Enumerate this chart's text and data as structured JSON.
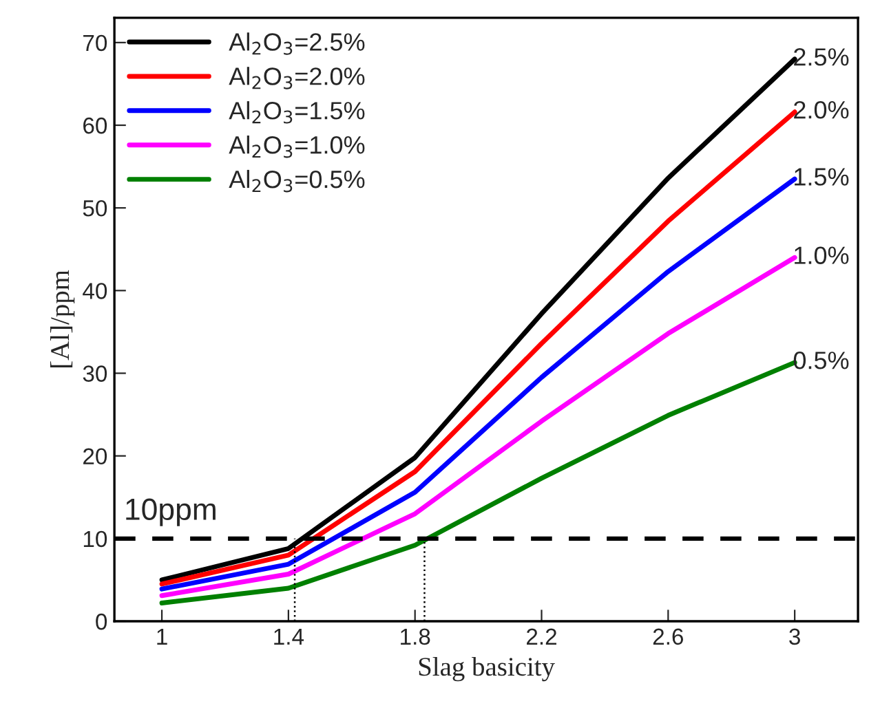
{
  "chart_data": {
    "type": "line",
    "xlabel": "Slag basicity",
    "ylabel": "[Al]/ppm",
    "x": [
      1,
      1.4,
      1.8,
      2.2,
      2.6,
      3
    ],
    "xlim": [
      0.85,
      3.2
    ],
    "xticks": [
      1,
      1.4,
      1.8,
      2.2,
      2.6,
      3
    ],
    "ylim": [
      0,
      73
    ],
    "yticks": [
      0,
      10,
      20,
      30,
      40,
      50,
      60,
      70
    ],
    "series": [
      {
        "name": "Al$_{2}$O$_{3}$=2.5%",
        "color": "#000000",
        "values": [
          5.0,
          8.8,
          19.8,
          37.2,
          53.6,
          68.0
        ]
      },
      {
        "name": "Al$_{2}$O$_{3}$=2.0%",
        "color": "#ff0000",
        "values": [
          4.5,
          8.0,
          18.1,
          33.6,
          48.4,
          61.6
        ]
      },
      {
        "name": "Al$_{2}$O$_{3}$=1.5%",
        "color": "#0000ff",
        "values": [
          3.9,
          6.9,
          15.6,
          29.5,
          42.3,
          53.5
        ]
      },
      {
        "name": "Al$_{2}$O$_{3}$=1.0%",
        "color": "#ff00ff",
        "values": [
          3.1,
          5.7,
          13.0,
          24.2,
          34.8,
          44.0
        ]
      },
      {
        "name": "Al$_{2}$O$_{3}$=0.5%",
        "color": "#008000",
        "values": [
          2.2,
          4.0,
          9.2,
          17.3,
          24.9,
          31.3
        ]
      }
    ],
    "annotations": [
      "2.5%",
      "2.0%",
      "1.5%",
      "1.0%",
      "0.5%"
    ],
    "ref_lines": [
      {
        "axis": "y",
        "value": 10,
        "label": "10ppm",
        "color": "#000000",
        "line_style": "dashed"
      },
      {
        "axis": "x",
        "value": 1.42,
        "color": "#000000",
        "line_style": "dotted"
      },
      {
        "axis": "x",
        "value": 1.83,
        "color": "#000000",
        "line_style": "dotted"
      }
    ],
    "legend": "top left",
    "grid": false,
    "marker": "none",
    "line_style": "solid"
  }
}
